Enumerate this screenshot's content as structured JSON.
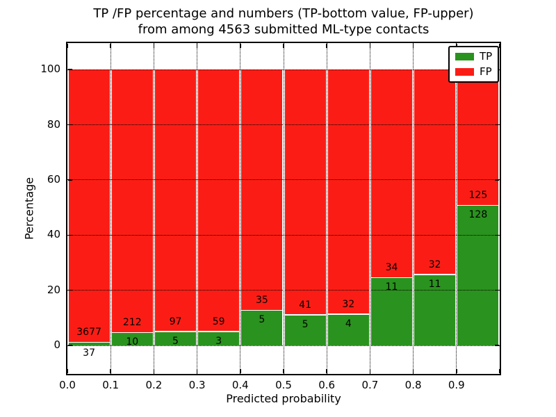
{
  "figure": {
    "title_line1": "TP /FP percentage and numbers (TP-bottom value, FP-upper)",
    "title_line2": "from among 4563 submitted ML-type contacts",
    "background": "#ffffff"
  },
  "chart_data": {
    "type": "bar",
    "stacked_percent": true,
    "title": "TP /FP percentage and numbers (TP-bottom value, FP-upper)\nfrom among 4563 submitted ML-type contacts",
    "xlabel": "Predicted probability",
    "ylabel": "Percentage",
    "bin_edges": [
      0.0,
      0.1,
      0.2,
      0.3,
      0.4,
      0.5,
      0.6,
      0.7,
      0.8,
      0.9,
      1.0
    ],
    "x_tick_labels": [
      "0.0",
      "0.1",
      "0.2",
      "0.3",
      "0.4",
      "0.5",
      "0.6",
      "0.7",
      "0.8",
      "0.9"
    ],
    "y_tick_values": [
      0,
      20,
      40,
      60,
      80,
      100
    ],
    "y_tick_labels": [
      "0",
      "20",
      "40",
      "60",
      "80",
      "100"
    ],
    "xlim": [
      0.0,
      1.0
    ],
    "ylim": [
      -10.3,
      109.6
    ],
    "grid": "dotted black, both axes",
    "legend_position": "upper right",
    "series": [
      {
        "name": "TP",
        "color": "#2a921e",
        "counts": [
          37,
          10,
          5,
          3,
          5,
          5,
          4,
          11,
          11,
          128
        ]
      },
      {
        "name": "FP",
        "color": "#fb1d15",
        "counts": [
          3677,
          212,
          97,
          59,
          35,
          41,
          32,
          34,
          32,
          125
        ]
      }
    ],
    "tp_percent": [
      1.0,
      4.5,
      4.9,
      4.8,
      12.5,
      10.9,
      11.1,
      24.4,
      25.6,
      50.6
    ],
    "note": "bars stacked to 100%; TP count printed at segment boundary bottom, FP count above boundary"
  }
}
